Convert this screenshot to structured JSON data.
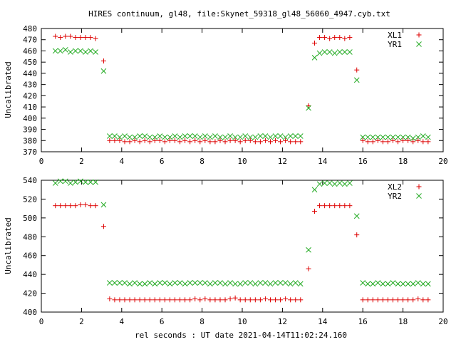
{
  "title": "HIRES continuum, gl48, file:Skynet_59318_gl48_56060_4947.cyb.txt",
  "xlabel": "rel seconds : UT date 2021-04-14T11:02:24.160",
  "colors": {
    "red": "#dd0000",
    "green": "#22aa22"
  },
  "chart_data": [
    {
      "type": "scatter",
      "ylabel": "Uncalibrated",
      "xlim": [
        0,
        20
      ],
      "ylim": [
        370,
        480
      ],
      "xticks": [
        0,
        2,
        4,
        6,
        8,
        10,
        12,
        14,
        16,
        18,
        20
      ],
      "yticks": [
        370,
        380,
        390,
        400,
        410,
        420,
        430,
        440,
        450,
        460,
        470,
        480
      ],
      "grid": false,
      "legend_position": "top-right",
      "x": [
        0.7,
        0.95,
        1.2,
        1.45,
        1.7,
        1.95,
        2.2,
        2.45,
        2.7,
        3.1,
        3.4,
        3.65,
        3.9,
        4.15,
        4.4,
        4.65,
        4.9,
        5.15,
        5.4,
        5.65,
        5.9,
        6.15,
        6.4,
        6.65,
        6.9,
        7.15,
        7.4,
        7.65,
        7.9,
        8.15,
        8.4,
        8.65,
        8.9,
        9.15,
        9.4,
        9.65,
        9.9,
        10.15,
        10.4,
        10.65,
        10.9,
        11.15,
        11.4,
        11.65,
        11.9,
        12.15,
        12.4,
        12.65,
        12.9,
        13.3,
        13.6,
        13.85,
        14.1,
        14.35,
        14.6,
        14.85,
        15.1,
        15.35,
        15.7,
        16.0,
        16.25,
        16.5,
        16.75,
        17.0,
        17.25,
        17.5,
        17.75,
        18.0,
        18.25,
        18.5,
        18.75,
        19.0,
        19.25
      ],
      "series": [
        {
          "name": "XL1",
          "marker": "plus",
          "color": "#dd0000",
          "values": [
            473,
            472,
            473,
            473,
            472,
            472,
            472,
            472,
            471,
            451,
            380,
            380,
            380,
            379,
            379,
            380,
            379,
            380,
            379,
            380,
            380,
            379,
            380,
            380,
            379,
            380,
            379,
            380,
            379,
            380,
            379,
            379,
            380,
            379,
            380,
            380,
            379,
            380,
            380,
            379,
            379,
            380,
            379,
            380,
            379,
            380,
            379,
            379,
            379,
            411,
            467,
            472,
            472,
            471,
            472,
            472,
            471,
            472,
            443,
            380,
            379,
            379,
            380,
            379,
            379,
            380,
            379,
            380,
            380,
            379,
            380,
            379,
            379
          ]
        },
        {
          "name": "YR1",
          "marker": "cross",
          "color": "#22aa22",
          "values": [
            460,
            460,
            461,
            459,
            460,
            460,
            459,
            460,
            459,
            442,
            384,
            384,
            383,
            384,
            383,
            383,
            384,
            384,
            383,
            383,
            384,
            383,
            383,
            384,
            383,
            384,
            384,
            384,
            383,
            384,
            383,
            384,
            383,
            383,
            384,
            383,
            383,
            384,
            383,
            383,
            384,
            384,
            383,
            384,
            384,
            383,
            384,
            384,
            384,
            409,
            454,
            458,
            459,
            459,
            458,
            459,
            459,
            459,
            434,
            383,
            383,
            383,
            383,
            383,
            383,
            383,
            383,
            383,
            383,
            382,
            383,
            384,
            383
          ]
        }
      ]
    },
    {
      "type": "scatter",
      "ylabel": "Uncalibrated",
      "xlim": [
        0,
        20
      ],
      "ylim": [
        400,
        540
      ],
      "xticks": [
        0,
        2,
        4,
        6,
        8,
        10,
        12,
        14,
        16,
        18,
        20
      ],
      "yticks": [
        400,
        420,
        440,
        460,
        480,
        500,
        520,
        540
      ],
      "grid": false,
      "legend_position": "top-right",
      "x": [
        0.7,
        0.95,
        1.2,
        1.45,
        1.7,
        1.95,
        2.2,
        2.45,
        2.7,
        3.1,
        3.4,
        3.65,
        3.9,
        4.15,
        4.4,
        4.65,
        4.9,
        5.15,
        5.4,
        5.65,
        5.9,
        6.15,
        6.4,
        6.65,
        6.9,
        7.15,
        7.4,
        7.65,
        7.9,
        8.15,
        8.4,
        8.65,
        8.9,
        9.15,
        9.4,
        9.65,
        9.9,
        10.15,
        10.4,
        10.65,
        10.9,
        11.15,
        11.4,
        11.65,
        11.9,
        12.15,
        12.4,
        12.65,
        12.9,
        13.3,
        13.6,
        13.85,
        14.1,
        14.35,
        14.6,
        14.85,
        15.1,
        15.35,
        15.7,
        16.0,
        16.25,
        16.5,
        16.75,
        17.0,
        17.25,
        17.5,
        17.75,
        18.0,
        18.25,
        18.5,
        18.75,
        19.0,
        19.25
      ],
      "series": [
        {
          "name": "XL2",
          "marker": "plus",
          "color": "#dd0000",
          "values": [
            513,
            513,
            513,
            513,
            513,
            514,
            514,
            513,
            513,
            491,
            414,
            413,
            413,
            413,
            413,
            413,
            413,
            413,
            413,
            413,
            413,
            413,
            413,
            413,
            413,
            413,
            413,
            414,
            413,
            414,
            413,
            413,
            413,
            413,
            414,
            415,
            413,
            413,
            413,
            413,
            413,
            414,
            413,
            413,
            413,
            414,
            413,
            413,
            413,
            446,
            507,
            513,
            513,
            513,
            513,
            513,
            513,
            513,
            482,
            413,
            413,
            413,
            413,
            413,
            413,
            413,
            413,
            413,
            413,
            413,
            414,
            413,
            413
          ]
        },
        {
          "name": "YR2",
          "marker": "cross",
          "color": "#22aa22",
          "values": [
            537,
            539,
            539,
            537,
            538,
            539,
            538,
            538,
            538,
            514,
            431,
            431,
            431,
            431,
            430,
            431,
            430,
            430,
            431,
            430,
            431,
            431,
            430,
            431,
            431,
            430,
            431,
            431,
            431,
            431,
            430,
            431,
            431,
            430,
            431,
            430,
            430,
            431,
            431,
            430,
            431,
            431,
            430,
            431,
            431,
            431,
            430,
            431,
            430,
            466,
            530,
            536,
            537,
            537,
            536,
            537,
            536,
            537,
            502,
            431,
            430,
            430,
            431,
            430,
            430,
            431,
            430,
            430,
            430,
            430,
            431,
            430,
            430
          ]
        }
      ]
    }
  ]
}
